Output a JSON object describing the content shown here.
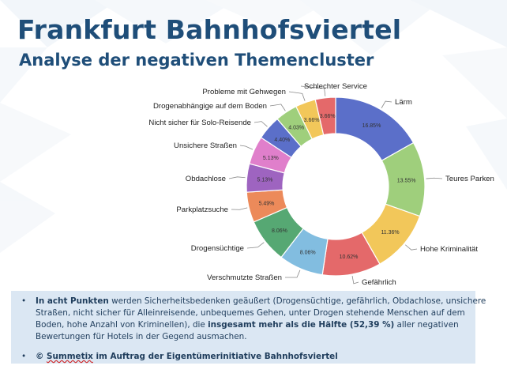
{
  "title": "Frankfurt Bahnhofsviertel",
  "subtitle": "Analyse der negativen Themencluster",
  "colors": {
    "title": "#1f4e79",
    "text": "#1f3d5c",
    "label": "#222222",
    "value_label": "#333333",
    "leader": "#888888",
    "box": "#dbe7f3",
    "deco": "#e6edf5"
  },
  "chart_data": {
    "type": "pie",
    "variant": "donut",
    "title": "",
    "unit": "%",
    "slices": [
      {
        "label": "Lärm",
        "value": 16.85,
        "value_label": "16.85%",
        "color": "#5b6fc9"
      },
      {
        "label": "Teures Parken",
        "value": 13.55,
        "value_label": "13.55%",
        "color": "#9fcf7c"
      },
      {
        "label": "Hohe Kriminalität",
        "value": 11.36,
        "value_label": "11.36%",
        "color": "#f2c75a"
      },
      {
        "label": "Gefährlich",
        "value": 10.62,
        "value_label": "10.62%",
        "color": "#e4696a"
      },
      {
        "label": "Verschmutzte Straßen",
        "value": 8.06,
        "value_label": "8.06%",
        "color": "#82bde0"
      },
      {
        "label": "Drogensüchtige",
        "value": 8.06,
        "value_label": "8.06%",
        "color": "#56a873"
      },
      {
        "label": "Parkplatzsuche",
        "value": 5.49,
        "value_label": "5.49%",
        "color": "#ec8a5a"
      },
      {
        "label": "Obdachlose",
        "value": 5.13,
        "value_label": "5.13%",
        "color": "#9e64c0"
      },
      {
        "label": "Unsichere Straßen",
        "value": 5.13,
        "value_label": "5.13%",
        "color": "#e07fcb"
      },
      {
        "label": "Nicht sicher für Solo-Reisende",
        "value": 4.4,
        "value_label": "4.40%",
        "color": "#5b6fc9"
      },
      {
        "label": "Drogenabhängige auf dem Boden",
        "value": 4.03,
        "value_label": "4.03%",
        "color": "#9fcf7c"
      },
      {
        "label": "Probleme mit Gehwegen",
        "value": 3.66,
        "value_label": "3.66%",
        "color": "#f2c75a"
      },
      {
        "label": "Schlechter Service",
        "value": 3.66,
        "value_label": "3.66%",
        "color": "#e4696a"
      }
    ]
  },
  "info": {
    "item1": {
      "bold_start": "In acht Punkten",
      "text_1": " werden Sicherheitsbedenken geäußert (Drogensüchtige, gefährlich, Obdachlose, unsichere Straßen, nicht sicher für Alleinreisende, unbequemes Gehen, unter Drogen stehende Menschen auf dem Boden, hohe Anzahl von Kriminellen), die ",
      "bold_mid": "insgesamt mehr als die Hälfte (52,39 %)",
      "text_2": " aller negativen Bewertungen für Hotels in der Gegend ausmachen."
    },
    "item2": {
      "copyright": "©",
      "brand": "Summetix",
      "rest": " im Auftrag der Eigentümerinitiative Bahnhofsviertel"
    }
  }
}
